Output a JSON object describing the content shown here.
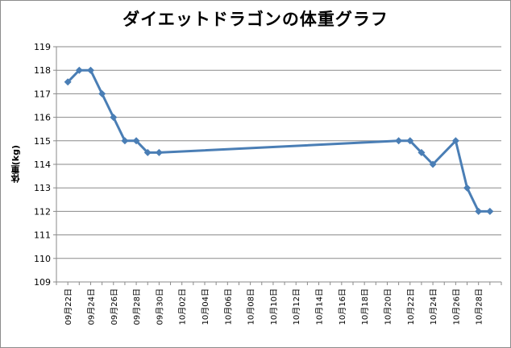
{
  "chart_data": {
    "type": "line",
    "title": "ダイエットドラゴンの体重グラフ",
    "ylabel": "体重(kg)",
    "xlabel": "",
    "ylim": [
      109,
      119
    ],
    "yticks": [
      109,
      110,
      111,
      112,
      113,
      114,
      115,
      116,
      117,
      118,
      119
    ],
    "xlim": [
      "2009-09-21",
      "2009-10-30"
    ],
    "xticks": [
      "09月22日",
      "09月24日",
      "09月26日",
      "09月28日",
      "09月30日",
      "10月02日",
      "10月04日",
      "10月06日",
      "10月08日",
      "10月10日",
      "10月12日",
      "10月14日",
      "10月16日",
      "10月18日",
      "10月20日",
      "10月22日",
      "10月24日",
      "10月26日",
      "10月28日"
    ],
    "grid": "horizontal",
    "series": [
      {
        "color": "#4a7eb5",
        "marker": "diamond",
        "points": [
          {
            "x": "2009-09-22",
            "y": 117.5
          },
          {
            "x": "2009-09-23",
            "y": 118
          },
          {
            "x": "2009-09-24",
            "y": 118
          },
          {
            "x": "2009-09-25",
            "y": 117
          },
          {
            "x": "2009-09-26",
            "y": 116
          },
          {
            "x": "2009-09-27",
            "y": 115
          },
          {
            "x": "2009-09-28",
            "y": 115
          },
          {
            "x": "2009-09-29",
            "y": 114.5
          },
          {
            "x": "2009-09-30",
            "y": 114.5
          },
          {
            "x": "2009-10-21",
            "y": 115
          },
          {
            "x": "2009-10-22",
            "y": 115
          },
          {
            "x": "2009-10-23",
            "y": 114.5
          },
          {
            "x": "2009-10-24",
            "y": 114
          },
          {
            "x": "2009-10-26",
            "y": 115
          },
          {
            "x": "2009-10-27",
            "y": 113
          },
          {
            "x": "2009-10-28",
            "y": 112
          },
          {
            "x": "2009-10-29",
            "y": 112
          }
        ]
      }
    ]
  }
}
